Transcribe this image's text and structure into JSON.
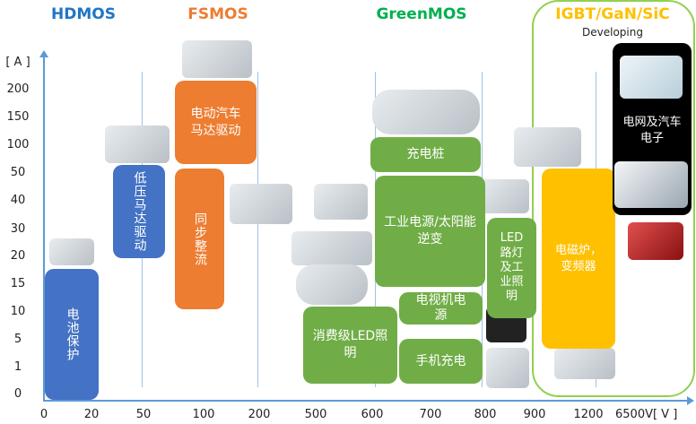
{
  "headers": [
    {
      "label": "HDMOS",
      "color": "#1f77c4"
    },
    {
      "label": "FSMOS",
      "color": "#ed7d31"
    },
    {
      "label": "GreenMOS",
      "color": "#00b050"
    },
    {
      "label": "IGBT/GaN/SiC",
      "color": "#ffc000",
      "sub": "Developing"
    }
  ],
  "y_axis": {
    "unit": "[ A ]",
    "ticks": [
      "200",
      "150",
      "100",
      "50",
      "40",
      "30",
      "20",
      "15",
      "10",
      "5",
      "1",
      "0"
    ]
  },
  "x_axis": {
    "ticks": [
      "0",
      "20",
      "50",
      "100",
      "200",
      "500",
      "600",
      "700",
      "800",
      "900",
      "1200"
    ],
    "last": "6500V[ V ]"
  },
  "boxes": {
    "battery": "电池保护",
    "lv_motor": "低压马达驱动",
    "ev_motor": "电动汽车马达驱动",
    "sync_rect": "同步整流",
    "led_consumer": "消费级LED照明",
    "charging_pile": "充电桩",
    "industrial_solar": "工业电源/太阳能逆变",
    "tv_power": "电视机电源",
    "phone_charger": "手机充电",
    "led_street": "LED路灯及工业照明",
    "induction": "电磁炉，变频器",
    "grid_auto": "电网及汽车电子"
  },
  "colors": {
    "blue": "#4472c4",
    "orange": "#ed7d31",
    "green": "#70ad47",
    "yellow": "#ffc000",
    "axis": "#5b9bd5",
    "outline": "#92d050"
  }
}
